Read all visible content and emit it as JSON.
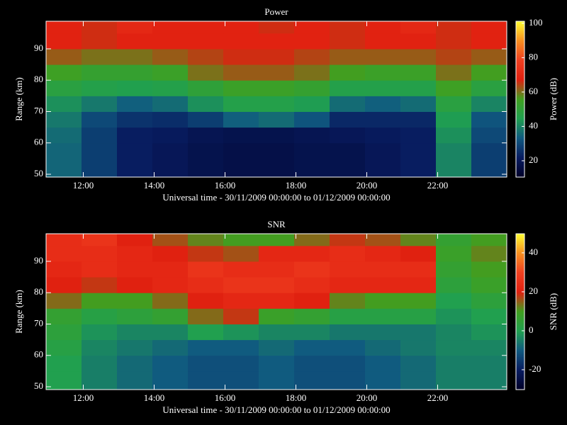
{
  "chart_data": [
    {
      "type": "heatmap",
      "title": "Power",
      "xlabel": "Universal time - 30/11/2009 00:00:00 to 01/12/2009 00:00:00",
      "ylabel": "Range (km)",
      "colorbar_label": "Power (dB)",
      "xlim": [
        10.95,
        23.95
      ],
      "ylim": [
        49.1,
        98.8
      ],
      "xticks": [
        {
          "value": 12,
          "label": "12:00"
        },
        {
          "value": 14,
          "label": "14:00"
        },
        {
          "value": 16,
          "label": "16:00"
        },
        {
          "value": 18,
          "label": "18:00"
        },
        {
          "value": 20,
          "label": "20:00"
        },
        {
          "value": 22,
          "label": "22:00"
        }
      ],
      "yticks": [
        50,
        60,
        70,
        80,
        90
      ],
      "zlim": [
        10.5,
        101.2
      ],
      "zticks": [
        20,
        40,
        60,
        80,
        100
      ],
      "colormap": [
        "#000028",
        "#081c60",
        "#105a80",
        "#20a050",
        "#40a020",
        "#e02010",
        "#f04020",
        "#f89020",
        "#ffff30"
      ],
      "xbins": [
        10.95,
        11.95,
        12.95,
        13.95,
        14.95,
        15.95,
        16.95,
        17.95,
        18.95,
        19.95,
        20.95,
        21.95,
        22.95,
        23.95
      ],
      "ybins": [
        49.1,
        55,
        60,
        65,
        70,
        75,
        80,
        85,
        90,
        95,
        98.8
      ],
      "values": [
        [
          35,
          28,
          22,
          20,
          18,
          17,
          17,
          18,
          18,
          20,
          22,
          40,
          28
        ],
        [
          35,
          28,
          22,
          20,
          18,
          17,
          17,
          18,
          18,
          20,
          22,
          40,
          28
        ],
        [
          36,
          28,
          22,
          21,
          19,
          18,
          18,
          19,
          20,
          21,
          22,
          42,
          30
        ],
        [
          38,
          30,
          26,
          25,
          28,
          34,
          36,
          32,
          24,
          24,
          24,
          44,
          32
        ],
        [
          42,
          38,
          34,
          36,
          42,
          46,
          46,
          44,
          36,
          34,
          36,
          48,
          40
        ],
        [
          48,
          46,
          45,
          46,
          50,
          54,
          54,
          52,
          46,
          46,
          46,
          55,
          48
        ],
        [
          55,
          52,
          52,
          54,
          60,
          62,
          62,
          60,
          56,
          54,
          54,
          60,
          56
        ],
        [
          62,
          60,
          60,
          62,
          64,
          66,
          66,
          64,
          62,
          62,
          62,
          64,
          62
        ],
        [
          68,
          66,
          68,
          68,
          68,
          68,
          68,
          68,
          66,
          68,
          68,
          66,
          68
        ],
        [
          68,
          66,
          70,
          68,
          68,
          68,
          66,
          68,
          66,
          68,
          70,
          66,
          68
        ]
      ]
    },
    {
      "type": "heatmap",
      "title": "SNR",
      "xlabel": "Universal time - 30/11/2009 00:00:00 to 01/12/2009 00:00:00",
      "ylabel": "Range (km)",
      "colorbar_label": "SNR (dB)",
      "xlim": [
        10.95,
        23.95
      ],
      "ylim": [
        49.1,
        98.8
      ],
      "xticks": [
        {
          "value": 12,
          "label": "12:00"
        },
        {
          "value": 14,
          "label": "14:00"
        },
        {
          "value": 16,
          "label": "16:00"
        },
        {
          "value": 18,
          "label": "18:00"
        },
        {
          "value": 20,
          "label": "20:00"
        },
        {
          "value": 22,
          "label": "22:00"
        }
      ],
      "yticks": [
        50,
        60,
        70,
        80,
        90
      ],
      "zlim": [
        -30.2,
        49.8
      ],
      "zticks": [
        -20,
        0,
        20,
        40
      ],
      "colormap": [
        "#000028",
        "#081c60",
        "#105a80",
        "#20a050",
        "#40a020",
        "#e02010",
        "#f04020",
        "#f89020",
        "#ffff30"
      ],
      "xbins": [
        10.95,
        11.95,
        12.95,
        13.95,
        14.95,
        15.95,
        16.95,
        17.95,
        18.95,
        19.95,
        20.95,
        21.95,
        22.95,
        23.95
      ],
      "ybins": [
        49.1,
        55,
        60,
        65,
        70,
        75,
        80,
        85,
        90,
        95,
        98.8
      ],
      "values": [
        [
          0,
          -5,
          -8,
          -10,
          -12,
          -12,
          -10,
          -12,
          -12,
          -10,
          -8,
          -5,
          -5
        ],
        [
          0,
          -5,
          -8,
          -10,
          -12,
          -12,
          -10,
          -12,
          -12,
          -10,
          -8,
          -5,
          -5
        ],
        [
          2,
          -4,
          -6,
          -8,
          -10,
          -10,
          -8,
          -10,
          -10,
          -8,
          -6,
          -4,
          -4
        ],
        [
          4,
          -2,
          -4,
          -4,
          0,
          -2,
          -4,
          -4,
          -6,
          -6,
          -6,
          -4,
          -2
        ],
        [
          6,
          2,
          4,
          6,
          14,
          18,
          8,
          6,
          2,
          2,
          2,
          -2,
          0
        ],
        [
          14,
          10,
          10,
          14,
          20,
          22,
          22,
          20,
          12,
          10,
          10,
          0,
          4
        ],
        [
          20,
          18,
          20,
          22,
          24,
          26,
          26,
          24,
          22,
          22,
          22,
          4,
          8
        ],
        [
          22,
          24,
          22,
          22,
          26,
          24,
          24,
          26,
          24,
          24,
          24,
          6,
          10
        ],
        [
          24,
          24,
          22,
          20,
          18,
          16,
          22,
          22,
          24,
          22,
          20,
          8,
          12
        ],
        [
          24,
          26,
          20,
          16,
          12,
          10,
          10,
          14,
          18,
          16,
          12,
          6,
          10
        ]
      ]
    }
  ]
}
